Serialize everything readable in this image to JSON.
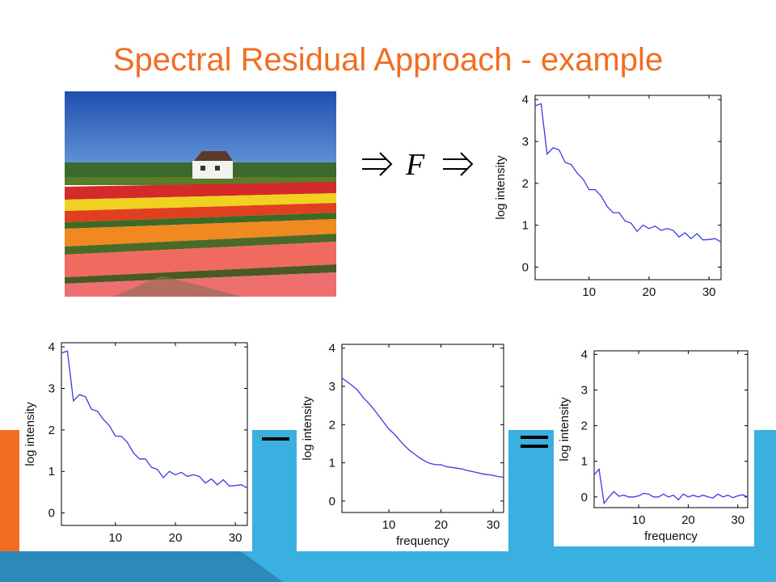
{
  "slide": {
    "title": "Spectral Residual Approach - example",
    "colors": {
      "title": "#f26d21",
      "accent_blue": "#3ab0e0",
      "accent_orange": "#f26d21",
      "curve": "#3a3ae6"
    },
    "operators": {
      "minus": "minus-operator",
      "equals": "equals-operator"
    },
    "transform_symbol": "F"
  },
  "chart_data": [
    {
      "id": "log-spectrum-top",
      "type": "line",
      "ylabel": "log intensity",
      "xlabel": "",
      "xlim": [
        1,
        32
      ],
      "ylim": [
        -0.3,
        4.1
      ],
      "xticks": [
        10,
        20,
        30
      ],
      "yticks": [
        0,
        1,
        2,
        3,
        4
      ],
      "series": [
        {
          "x": [
            1,
            2,
            3,
            4,
            5,
            6,
            7,
            8,
            9,
            10,
            11,
            12,
            13,
            14,
            15,
            16,
            17,
            18,
            19,
            20,
            21,
            22,
            23,
            24,
            25,
            26,
            27,
            28,
            29,
            30,
            31,
            32
          ],
          "values": [
            3.85,
            3.9,
            2.7,
            2.85,
            2.8,
            2.5,
            2.45,
            2.25,
            2.1,
            1.85,
            1.85,
            1.7,
            1.45,
            1.3,
            1.3,
            1.1,
            1.05,
            0.85,
            1.0,
            0.92,
            0.98,
            0.88,
            0.92,
            0.88,
            0.72,
            0.82,
            0.68,
            0.8,
            0.65,
            0.66,
            0.68,
            0.6
          ]
        }
      ]
    },
    {
      "id": "log-spectrum-bottom",
      "type": "line",
      "ylabel": "log intensity",
      "xlabel": "",
      "xlim": [
        1,
        32
      ],
      "ylim": [
        -0.3,
        4.1
      ],
      "xticks": [
        10,
        20,
        30
      ],
      "yticks": [
        0,
        1,
        2,
        3,
        4
      ],
      "series": [
        {
          "x": [
            1,
            2,
            3,
            4,
            5,
            6,
            7,
            8,
            9,
            10,
            11,
            12,
            13,
            14,
            15,
            16,
            17,
            18,
            19,
            20,
            21,
            22,
            23,
            24,
            25,
            26,
            27,
            28,
            29,
            30,
            31,
            32
          ],
          "values": [
            3.85,
            3.9,
            2.7,
            2.85,
            2.8,
            2.5,
            2.45,
            2.25,
            2.1,
            1.85,
            1.85,
            1.7,
            1.45,
            1.3,
            1.3,
            1.1,
            1.05,
            0.85,
            1.0,
            0.92,
            0.98,
            0.88,
            0.92,
            0.88,
            0.72,
            0.82,
            0.68,
            0.8,
            0.65,
            0.66,
            0.68,
            0.6
          ]
        }
      ]
    },
    {
      "id": "averaged-spectrum",
      "type": "line",
      "ylabel": "log intensity",
      "xlabel": "frequency",
      "xlim": [
        1,
        32
      ],
      "ylim": [
        -0.3,
        4.1
      ],
      "xticks": [
        10,
        20,
        30
      ],
      "yticks": [
        0,
        1,
        2,
        3,
        4
      ],
      "series": [
        {
          "x": [
            1,
            2,
            3,
            4,
            5,
            6,
            7,
            8,
            9,
            10,
            11,
            12,
            13,
            14,
            15,
            16,
            17,
            18,
            19,
            20,
            21,
            22,
            23,
            24,
            25,
            26,
            27,
            28,
            29,
            30,
            31,
            32
          ],
          "values": [
            3.22,
            3.12,
            3.02,
            2.9,
            2.72,
            2.58,
            2.42,
            2.24,
            2.06,
            1.88,
            1.76,
            1.6,
            1.45,
            1.32,
            1.22,
            1.12,
            1.04,
            0.98,
            0.95,
            0.95,
            0.9,
            0.88,
            0.86,
            0.84,
            0.8,
            0.77,
            0.74,
            0.71,
            0.69,
            0.67,
            0.64,
            0.62
          ]
        }
      ]
    },
    {
      "id": "spectral-residual",
      "type": "line",
      "ylabel": "log intensity",
      "xlabel": "frequency",
      "xlim": [
        1,
        32
      ],
      "ylim": [
        -0.3,
        4.1
      ],
      "xticks": [
        10,
        20,
        30
      ],
      "yticks": [
        0,
        1,
        2,
        3,
        4
      ],
      "series": [
        {
          "x": [
            1,
            2,
            3,
            4,
            5,
            6,
            7,
            8,
            9,
            10,
            11,
            12,
            13,
            14,
            15,
            16,
            17,
            18,
            19,
            20,
            21,
            22,
            23,
            24,
            25,
            26,
            27,
            28,
            29,
            30,
            31,
            32
          ],
          "values": [
            0.62,
            0.78,
            -0.18,
            0.0,
            0.15,
            0.02,
            0.05,
            0.0,
            0.0,
            0.03,
            0.1,
            0.08,
            0.0,
            0.0,
            0.08,
            0.0,
            0.05,
            -0.08,
            0.08,
            0.0,
            0.05,
            0.0,
            0.05,
            0.0,
            -0.03,
            0.08,
            0.0,
            0.05,
            -0.02,
            0.03,
            0.06,
            0.0
          ]
        }
      ]
    }
  ]
}
